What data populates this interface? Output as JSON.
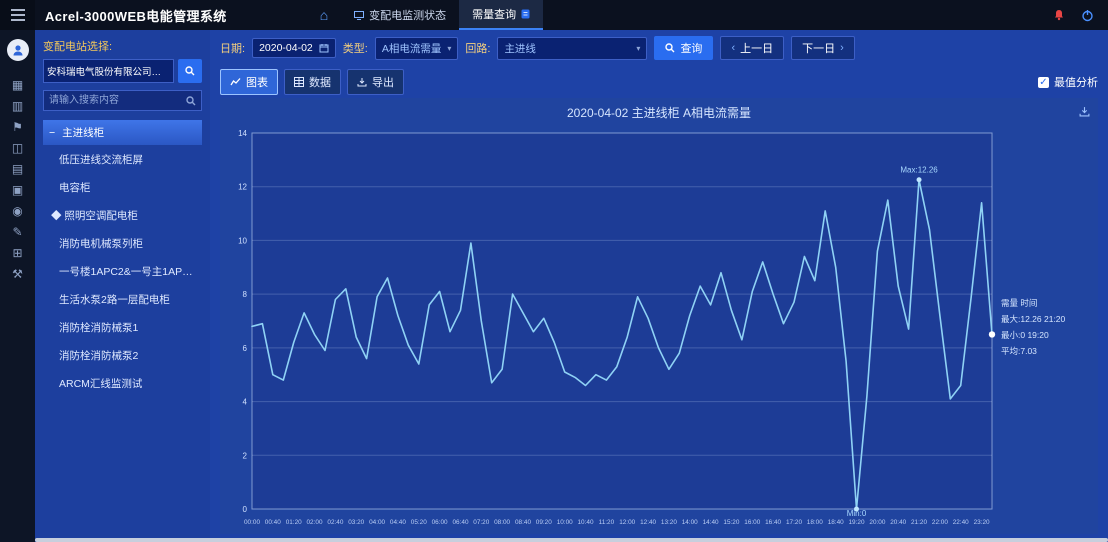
{
  "colors": {
    "accent": "#2a6df0",
    "line": "#8fd2f5",
    "alarm": "#e84545",
    "panel_blue": "#1d3f9e"
  },
  "topbar": {
    "title": "Acrel-3000WEB电能管理系统",
    "nav": [
      {
        "label": "变配电监测状态",
        "active": false
      },
      {
        "label": "需量查询",
        "active": true
      }
    ]
  },
  "sidebar_rail": {
    "icons": [
      {
        "name": "apps-icon",
        "glyph": "▦"
      },
      {
        "name": "monitor-icon",
        "glyph": "▥"
      },
      {
        "name": "flag-icon",
        "glyph": "⚑"
      },
      {
        "name": "chart-icon",
        "glyph": "◫"
      },
      {
        "name": "report-icon",
        "glyph": "▤"
      },
      {
        "name": "document-icon",
        "glyph": "▣"
      },
      {
        "name": "target-icon",
        "glyph": "◉"
      },
      {
        "name": "edit-icon",
        "glyph": "✎"
      },
      {
        "name": "grid-icon",
        "glyph": "⊞"
      },
      {
        "name": "tools-icon",
        "glyph": "⚒"
      }
    ]
  },
  "station_panel": {
    "label": "变配电站选择:",
    "station": "安科瑞电气股份有限公司变电所",
    "search_placeholder": "请输入搜索内容",
    "tree": {
      "root": "主进线柜",
      "collapse_glyph": "−",
      "items": [
        {
          "label": "低压进线交流柜屏",
          "diamond": false
        },
        {
          "label": "电容柜",
          "diamond": false
        },
        {
          "label": "照明空调配电柜",
          "diamond": true
        },
        {
          "label": "消防电机械泵列柜",
          "diamond": false
        },
        {
          "label": "一号楼1APC2&一号主1APC1柜",
          "diamond": false
        },
        {
          "label": "生活水泵2路一层配电柜",
          "diamond": false
        },
        {
          "label": "消防栓消防械泵1",
          "diamond": false
        },
        {
          "label": "消防栓消防械泵2",
          "diamond": false
        },
        {
          "label": "ARCM汇线监测试",
          "diamond": false
        }
      ]
    }
  },
  "filters": {
    "date_label": "日期:",
    "date_value": "2020-04-02",
    "type_label": "类型:",
    "type_value": "A相电流需量",
    "loop_label": "回路:",
    "loop_value": "主进线",
    "search_button": "查询",
    "prev_button": "上一日",
    "next_button": "下一日",
    "prev_chevron": "‹",
    "next_chevron": "›"
  },
  "toolbar": {
    "tabs": [
      {
        "label": "图表",
        "active": true
      },
      {
        "label": "数据",
        "active": false
      },
      {
        "label": "导出",
        "active": false
      }
    ],
    "checkbox_label": "最值分析",
    "checked": true,
    "check_glyph": "✓"
  },
  "chart_data": {
    "type": "line",
    "title": "2020-04-02  主进线柜  A相电流需量",
    "ylim": [
      0,
      14
    ],
    "ytick_step": 2,
    "grid": true,
    "line_color": "#8fd2f5",
    "x": [
      "00:00",
      "00:20",
      "00:40",
      "01:00",
      "01:20",
      "01:40",
      "02:00",
      "02:20",
      "02:40",
      "03:00",
      "03:20",
      "03:40",
      "04:00",
      "04:20",
      "04:40",
      "05:00",
      "05:20",
      "05:40",
      "06:00",
      "06:20",
      "06:40",
      "07:00",
      "07:20",
      "07:40",
      "08:00",
      "08:20",
      "08:40",
      "09:00",
      "09:20",
      "09:40",
      "10:00",
      "10:20",
      "10:40",
      "11:00",
      "11:20",
      "11:40",
      "12:00",
      "12:20",
      "12:40",
      "13:00",
      "13:20",
      "13:40",
      "14:00",
      "14:20",
      "14:40",
      "15:00",
      "15:20",
      "15:40",
      "16:00",
      "16:20",
      "16:40",
      "17:00",
      "17:20",
      "17:40",
      "18:00",
      "18:20",
      "18:40",
      "19:00",
      "19:20",
      "19:40",
      "20:00",
      "20:20",
      "20:40",
      "21:00",
      "21:20",
      "21:40",
      "22:00",
      "22:20",
      "22:40",
      "23:00",
      "23:20",
      "23:40"
    ],
    "values": [
      6.8,
      6.9,
      5.0,
      4.8,
      6.2,
      7.3,
      6.5,
      5.9,
      7.8,
      8.2,
      6.4,
      5.6,
      7.9,
      8.6,
      7.2,
      6.1,
      5.4,
      7.6,
      8.1,
      6.6,
      7.4,
      9.9,
      7.0,
      4.7,
      5.2,
      8.0,
      7.3,
      6.6,
      7.1,
      6.2,
      5.1,
      4.9,
      4.6,
      5.0,
      4.8,
      5.3,
      6.4,
      7.9,
      7.1,
      6.0,
      5.2,
      5.8,
      7.2,
      8.3,
      7.6,
      8.8,
      7.4,
      6.3,
      8.1,
      9.2,
      8.0,
      6.9,
      7.7,
      9.4,
      8.5,
      11.1,
      9.0,
      5.5,
      0.0,
      4.2,
      9.6,
      11.5,
      8.3,
      6.7,
      12.26,
      10.4,
      7.2,
      4.1,
      4.6,
      7.9,
      11.4,
      6.5
    ],
    "max_annotation": {
      "label": "Max:12.26",
      "index": 64
    },
    "min_annotation": {
      "label": "Min:0",
      "index": 58
    },
    "legend_lines": [
      "需量    时间",
      "最大:12.26  21:20",
      "最小:0  19:20",
      "平均:7.03"
    ]
  }
}
